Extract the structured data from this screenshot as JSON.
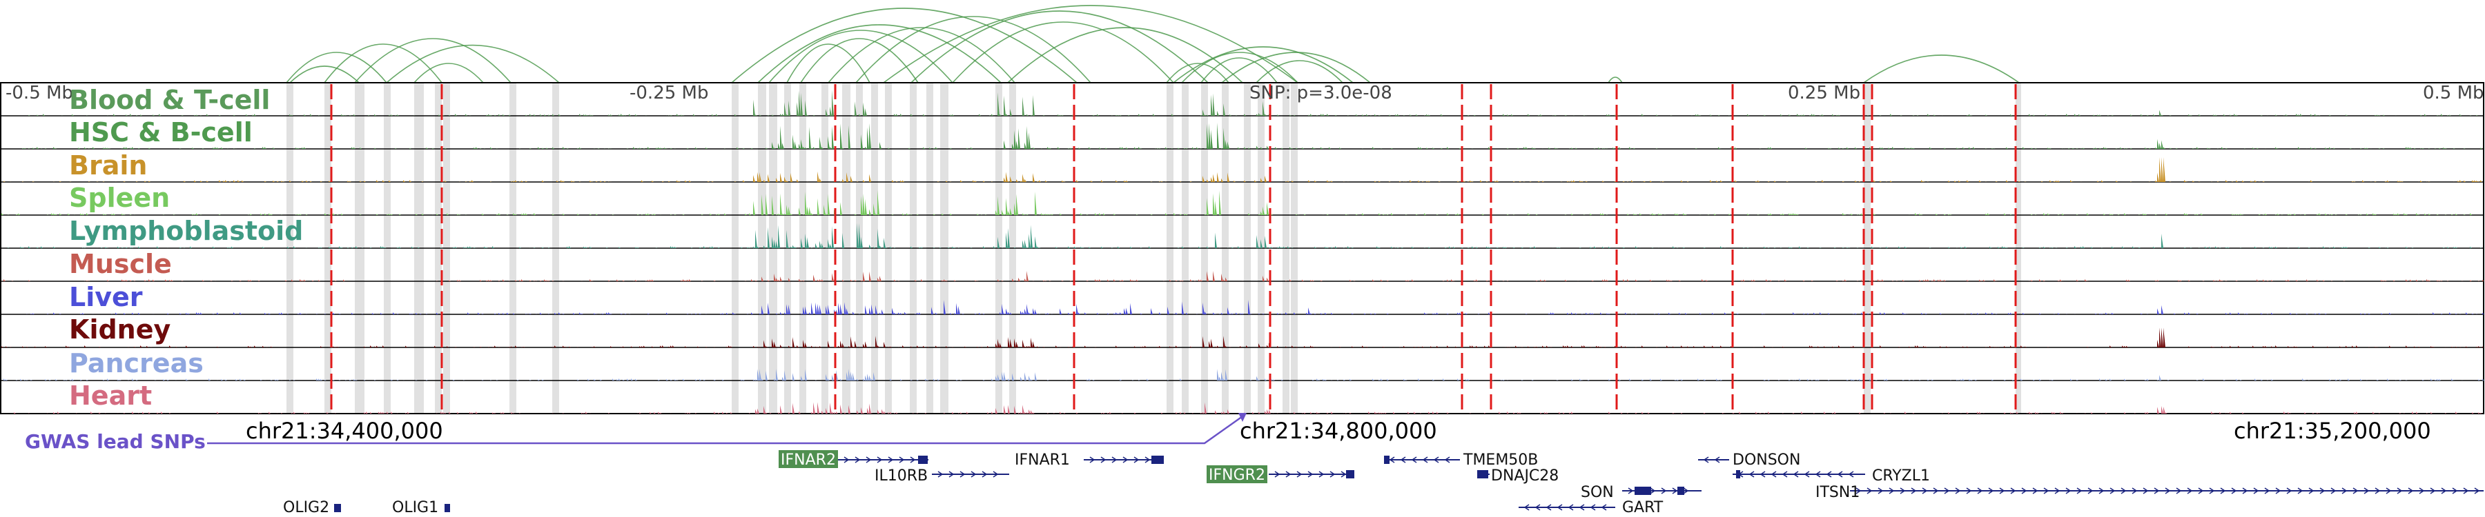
{
  "tracks": [
    {
      "label": "Blood & T-cell",
      "color": "#5a9a5a"
    },
    {
      "label": "HSC & B-cell",
      "color": "#4f9a4f"
    },
    {
      "label": "Brain",
      "color": "#c8922a"
    },
    {
      "label": "Spleen",
      "color": "#77c95f"
    },
    {
      "label": "Lymphoblastoid",
      "color": "#3f9a83"
    },
    {
      "label": "Muscle",
      "color": "#c45b52"
    },
    {
      "label": "Liver",
      "color": "#4c4fd8"
    },
    {
      "label": "Kidney",
      "color": "#6e0a0a"
    },
    {
      "label": "Pancreas",
      "color": "#8fa6df"
    },
    {
      "label": "Heart",
      "color": "#d46b80"
    }
  ],
  "axis": {
    "ticks": [
      "-0.5 Mb",
      "-0.25 Mb",
      "0.25 Mb",
      "0.5 Mb"
    ],
    "snp_label": "SNP: p=3.0e-08"
  },
  "coordinates": [
    "chr21:34,400,000",
    "chr21:34,800,000",
    "chr21:35,200,000"
  ],
  "gwas_label": "GWAS lead SNPs",
  "genes": [
    {
      "name": "IFNAR2",
      "highlight": true
    },
    {
      "name": "IL10RB",
      "highlight": false
    },
    {
      "name": "IFNAR1",
      "highlight": false
    },
    {
      "name": "IFNGR2",
      "highlight": true
    },
    {
      "name": "TMEM50B",
      "highlight": false
    },
    {
      "name": "DNAJC28",
      "highlight": false
    },
    {
      "name": "DONSON",
      "highlight": false
    },
    {
      "name": "CRYZL1",
      "highlight": false
    },
    {
      "name": "SON",
      "highlight": false
    },
    {
      "name": "GART",
      "highlight": false
    },
    {
      "name": "ITSN1",
      "highlight": false
    },
    {
      "name": "OLIG2",
      "highlight": false
    },
    {
      "name": "OLIG1",
      "highlight": false
    }
  ],
  "colors": {
    "arc": "#4e9a4e",
    "gwas_line": "#e01a1a",
    "gene": "#1a237e",
    "highlight_gene": "#4f8f4f",
    "gwas_connector": "#6a52c8"
  }
}
